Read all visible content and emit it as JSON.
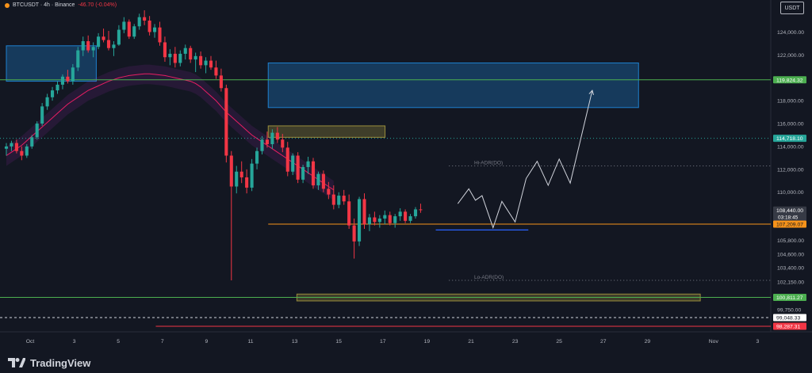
{
  "header": {
    "symbol": "BTCUSDT · 4h · Binance",
    "change": "-46.70 (-0.04%)"
  },
  "currency_button": "USDT",
  "footer": {
    "brand": "TradingView"
  },
  "colors": {
    "bg": "#131722",
    "up": "#26a69a",
    "down": "#f23645",
    "green_line": "#4caf50",
    "orange_line": "#f7931a",
    "red_line": "#f23645",
    "zone_blue": "#2196f3",
    "zone_yellow": "#b5a642"
  },
  "chart_data": {
    "type": "candlestick",
    "ylim": [
      97800,
      126800
    ],
    "y_ticks": [
      124000,
      122000,
      118000,
      116000,
      114000,
      112000,
      110000,
      105800,
      104600,
      103400,
      102150,
      99750
    ],
    "x_ticks": [
      "Oct",
      "3",
      "5",
      "7",
      "9",
      "11",
      "13",
      "15",
      "17",
      "19",
      "21",
      "23",
      "25",
      "27",
      "29",
      "Nov",
      "3"
    ],
    "price_labels": [
      {
        "value": 119824.32,
        "text": "119,824.32",
        "color": "#4caf50"
      },
      {
        "value": 114718.1,
        "text": "114,718.10",
        "color": "#26a69a"
      },
      {
        "value": 108440.0,
        "text": "108,440.00",
        "sub": "03:18:45",
        "color": "#363a45"
      },
      {
        "value": 107209.07,
        "text": "107,209.07",
        "color": "#f7931a"
      },
      {
        "value": 100811.27,
        "text": "100,811.27",
        "color": "#4caf50"
      },
      {
        "value": 99048.33,
        "text": "99,048.33",
        "color": "#ffffff"
      },
      {
        "value": 98287.31,
        "text": "98,287.31",
        "color": "#f23645"
      }
    ],
    "annotations": [
      {
        "text": "Hi-ADR(DO)",
        "value": 112300
      },
      {
        "text": "Lo-ADR(DO)",
        "value": 102300
      }
    ],
    "candles": [
      [
        113800,
        114300,
        113200,
        114000
      ],
      [
        114000,
        114500,
        113600,
        114300
      ],
      [
        114300,
        114600,
        113400,
        113600
      ],
      [
        113600,
        114000,
        112800,
        113200
      ],
      [
        113200,
        114200,
        113000,
        114000
      ],
      [
        114000,
        115000,
        113800,
        114800
      ],
      [
        114800,
        116200,
        114600,
        116000
      ],
      [
        116000,
        117800,
        115800,
        117500
      ],
      [
        117500,
        118600,
        117200,
        118300
      ],
      [
        118300,
        119200,
        118000,
        118900
      ],
      [
        118900,
        119700,
        118600,
        119400
      ],
      [
        119400,
        120300,
        119000,
        120100
      ],
      [
        120100,
        120700,
        119500,
        119700
      ],
      [
        119700,
        121200,
        119400,
        120900
      ],
      [
        120900,
        122700,
        120600,
        122400
      ],
      [
        122400,
        123600,
        121900,
        123200
      ],
      [
        123200,
        123700,
        122200,
        122400
      ],
      [
        122400,
        123100,
        121800,
        122700
      ],
      [
        122700,
        123900,
        122500,
        123600
      ],
      [
        123600,
        124300,
        123100,
        123300
      ],
      [
        123300,
        124100,
        122400,
        122600
      ],
      [
        122600,
        123200,
        121900,
        122900
      ],
      [
        122900,
        124600,
        122800,
        124200
      ],
      [
        124200,
        125300,
        123900,
        124900
      ],
      [
        124900,
        125100,
        123400,
        123600
      ],
      [
        123600,
        124700,
        123400,
        124500
      ],
      [
        124500,
        125600,
        124200,
        125300
      ],
      [
        125300,
        125900,
        124600,
        125000
      ],
      [
        125000,
        125400,
        123700,
        124000
      ],
      [
        124000,
        124700,
        123500,
        124400
      ],
      [
        124400,
        124900,
        122800,
        123100
      ],
      [
        123100,
        123600,
        121400,
        121800
      ],
      [
        121800,
        122500,
        121100,
        122100
      ],
      [
        122100,
        122700,
        120900,
        121300
      ],
      [
        121300,
        122400,
        121000,
        122100
      ],
      [
        122100,
        122900,
        121600,
        122600
      ],
      [
        122600,
        122800,
        121300,
        121600
      ],
      [
        121600,
        122200,
        120500,
        121900
      ],
      [
        121900,
        122300,
        120800,
        121100
      ],
      [
        121100,
        121800,
        120400,
        121500
      ],
      [
        121500,
        121900,
        120700,
        120900
      ],
      [
        120900,
        121500,
        119900,
        120200
      ],
      [
        120200,
        120800,
        118800,
        119100
      ],
      [
        119100,
        119400,
        112600,
        113200
      ],
      [
        113200,
        113600,
        102300,
        110500
      ],
      [
        110500,
        112300,
        109900,
        111800
      ],
      [
        111800,
        112700,
        110800,
        111300
      ],
      [
        111300,
        112000,
        109900,
        110400
      ],
      [
        110400,
        112900,
        110100,
        112500
      ],
      [
        112500,
        113900,
        112000,
        113600
      ],
      [
        113600,
        114900,
        113300,
        114600
      ],
      [
        114600,
        115300,
        113900,
        114200
      ],
      [
        114200,
        115500,
        113800,
        115200
      ],
      [
        115200,
        115700,
        114300,
        114600
      ],
      [
        114600,
        115100,
        113500,
        113900
      ],
      [
        113900,
        114400,
        111400,
        111800
      ],
      [
        111800,
        113400,
        111500,
        113200
      ],
      [
        113200,
        113500,
        110800,
        111100
      ],
      [
        111100,
        112400,
        110800,
        112200
      ],
      [
        112200,
        113100,
        111600,
        112700
      ],
      [
        112700,
        113000,
        110300,
        110600
      ],
      [
        110600,
        111800,
        110200,
        111600
      ],
      [
        111600,
        111900,
        110000,
        110300
      ],
      [
        110300,
        110900,
        109400,
        109800
      ],
      [
        109800,
        110600,
        108500,
        108900
      ],
      [
        108900,
        110000,
        108600,
        109700
      ],
      [
        109700,
        110200,
        108900,
        109200
      ],
      [
        109200,
        109800,
        106800,
        107100
      ],
      [
        107100,
        107700,
        104200,
        105700
      ],
      [
        105700,
        109600,
        105300,
        109400
      ],
      [
        109400,
        109900,
        106800,
        107200
      ],
      [
        107200,
        108100,
        106600,
        107800
      ],
      [
        107800,
        108300,
        107100,
        107400
      ],
      [
        107400,
        108000,
        106900,
        107700
      ],
      [
        107700,
        108400,
        107200,
        108000
      ],
      [
        108000,
        108300,
        107100,
        107300
      ],
      [
        107300,
        108100,
        106900,
        107900
      ],
      [
        107900,
        108600,
        107500,
        108300
      ],
      [
        108300,
        108500,
        107300,
        107500
      ],
      [
        107500,
        108100,
        107300,
        107900
      ],
      [
        107900,
        108700,
        107700,
        108500
      ],
      [
        108500,
        109000,
        108200,
        108440
      ]
    ],
    "ema": [
      113200,
      113500,
      113800,
      114100,
      114500,
      114900,
      115300,
      115700,
      116100,
      116500,
      116900,
      117300,
      117700,
      118000,
      118300,
      118600,
      118900,
      119100,
      119300,
      119500,
      119700,
      119850,
      120000,
      120100,
      120200,
      120250,
      120300,
      120350,
      120350,
      120300,
      120250,
      120200,
      120100,
      120000,
      119900,
      119800,
      119700,
      119500,
      119200,
      118800,
      118400,
      118000,
      117500,
      117000,
      116600,
      116200,
      115800,
      115400,
      115000,
      114700,
      114400,
      114100,
      113800,
      113500,
      113200,
      112900,
      112600,
      112300,
      112000,
      111700,
      111400,
      111100,
      110800,
      110500,
      110200
    ],
    "projection": [
      {
        "day": 19.4,
        "value": 109000
      },
      {
        "day": 19.9,
        "value": 110300
      },
      {
        "day": 20.2,
        "value": 109300
      },
      {
        "day": 20.5,
        "value": 109700
      },
      {
        "day": 21.0,
        "value": 106900
      },
      {
        "day": 21.4,
        "value": 109200
      },
      {
        "day": 22.0,
        "value": 107400
      },
      {
        "day": 22.5,
        "value": 111200
      },
      {
        "day": 23.0,
        "value": 112700
      },
      {
        "day": 23.5,
        "value": 110600
      },
      {
        "day": 24.0,
        "value": 112900
      },
      {
        "day": 24.5,
        "value": 110800
      },
      {
        "day": 25.5,
        "value": 118900
      }
    ],
    "zones": [
      {
        "name": "supply-zone-left",
        "day1": 0,
        "day2": 3,
        "v_top": 122800,
        "v_bottom": 119700,
        "color": "#2196f3"
      },
      {
        "name": "supply-zone-right",
        "day1": 10.8,
        "day2": 27.6,
        "v_top": 121300,
        "v_bottom": 117400,
        "color": "#2196f3"
      },
      {
        "name": "orderblock-yellow",
        "day1": 10.8,
        "day2": 16.1,
        "v_top": 115800,
        "v_bottom": 114800,
        "color": "#b5a642"
      },
      {
        "name": "demand-zone-bottom",
        "day1": 12.1,
        "day2": 30.4,
        "v_top": 101100,
        "v_bottom": 100500,
        "color": "#b5a642"
      }
    ],
    "hlines": [
      {
        "name": "level-119824",
        "value": 119824.32,
        "day1": 0,
        "color": "#4caf50",
        "style": "solid"
      },
      {
        "name": "level-114718",
        "value": 114718.1,
        "day1": 0,
        "color": "#26a69a",
        "style": "dotted"
      },
      {
        "name": "level-107209",
        "value": 107209.07,
        "day1": 10.8,
        "color": "#f7931a",
        "style": "solid"
      },
      {
        "name": "level-100811",
        "value": 100811.27,
        "day1": 0,
        "color": "#4caf50",
        "style": "solid"
      },
      {
        "name": "level-99048",
        "value": 99048.33,
        "day1": 0,
        "color": "#d1d4dc",
        "style": "dashed"
      },
      {
        "name": "level-98287",
        "value": 98287.31,
        "day1": 5.7,
        "color": "#f23645",
        "style": "solid"
      }
    ],
    "adr_lines": [
      {
        "value": 112300,
        "day1": 19.0
      },
      {
        "value": 102300,
        "day1": 19.0
      }
    ],
    "blue_level": {
      "value": 106700,
      "day1": 18.4,
      "day2": 22.6
    }
  }
}
